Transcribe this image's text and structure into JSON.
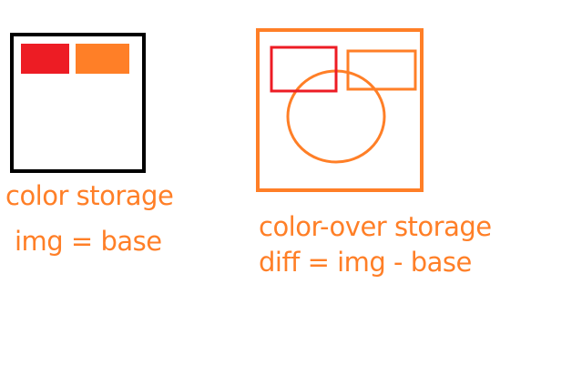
{
  "colors": {
    "orange": "#FF7F27",
    "red": "#ED1C24",
    "black": "#000000",
    "background": "#FFFFFF"
  },
  "left_panel": {
    "caption_line1": "color storage",
    "caption_line2": "img = base"
  },
  "right_panel": {
    "caption_line1": "color-over storage",
    "caption_line2": "diff = img - base"
  }
}
